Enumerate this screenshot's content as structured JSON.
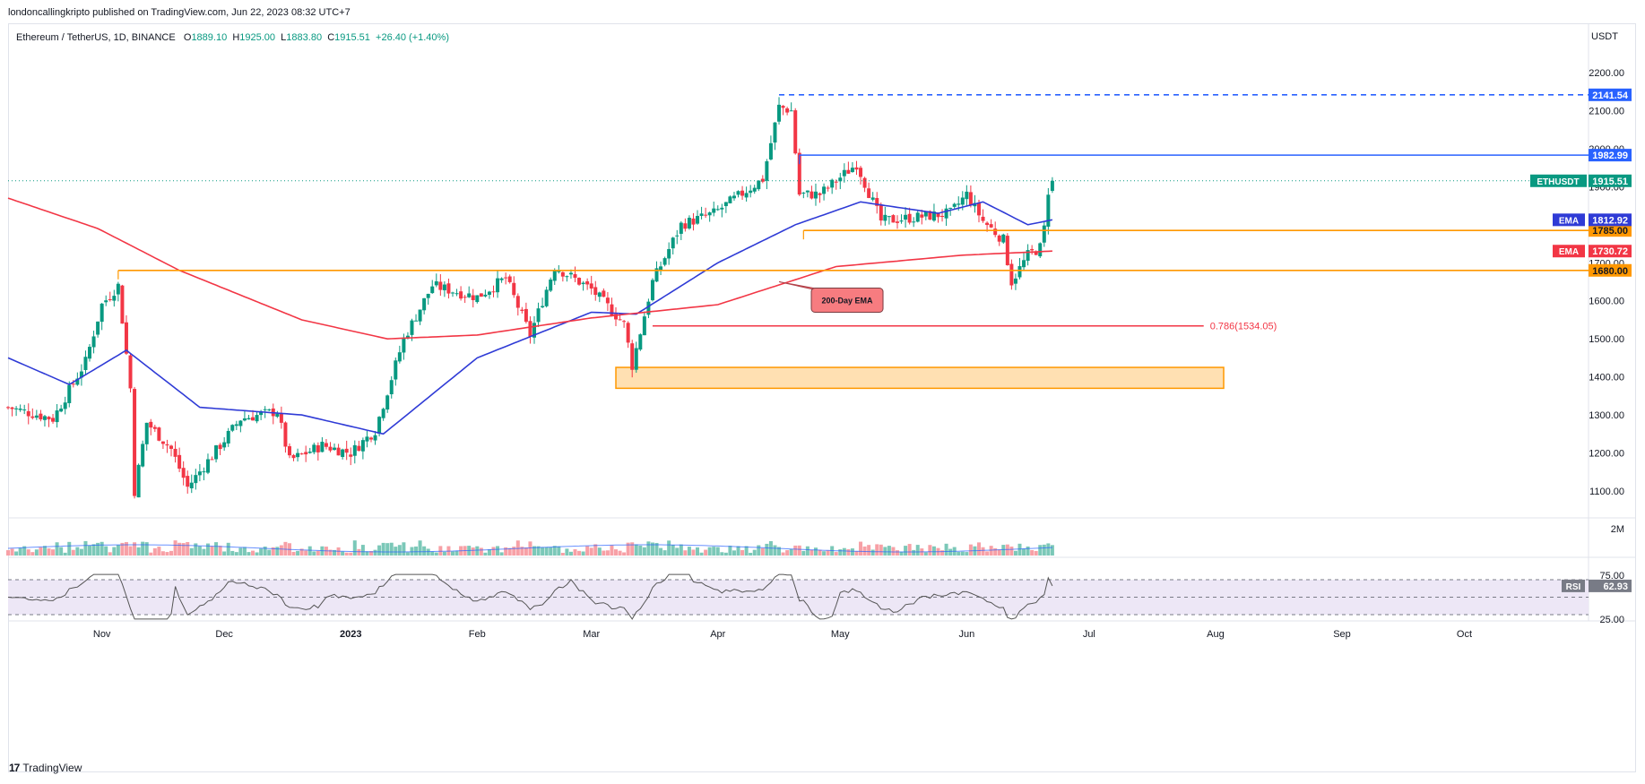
{
  "header": {
    "publisher": "londoncallingkripto published on TradingView.com, Jun 22, 2023 08:32 UTC+7",
    "symbol": "Ethereum / TetherUS, 1D, BINANCE",
    "open_label": "O",
    "open": "1889.10",
    "high_label": "H",
    "high": "1925.00",
    "low_label": "L",
    "low": "1883.80",
    "close_label": "C",
    "close": "1915.51",
    "change": "+26.40 (+1.40%)",
    "currency": "USDT"
  },
  "footer": {
    "brand": "TradingView"
  },
  "colors": {
    "up": "#089981",
    "down": "#f23645",
    "ema50": "#2f3bd6",
    "ema200": "#f23645",
    "orange": "#ff9800",
    "blue_level": "#2962ff",
    "rsi": "#7e57c2"
  },
  "chart_data": {
    "type": "candlestick",
    "symbol": "ETHUSDT",
    "timeframe": "1D",
    "x_range": [
      "2022-10-09",
      "2023-10-31"
    ],
    "ylim": [
      1030,
      2260
    ],
    "y_ticks": [
      "1100.00",
      "1200.00",
      "1300.00",
      "1400.00",
      "1500.00",
      "1600.00",
      "1700.00",
      "1800.00",
      "1900.00",
      "2000.00",
      "2100.00",
      "2200.00"
    ],
    "x_ticks": [
      "Nov",
      "Dec",
      "2023",
      "Feb",
      "Mar",
      "Apr",
      "May",
      "Jun",
      "Jul",
      "Aug",
      "Sep",
      "Oct"
    ],
    "price_path": [
      [
        "2022-10-09",
        1320
      ],
      [
        "2022-10-20",
        1290
      ],
      [
        "2022-10-28",
        1440
      ],
      [
        "2022-11-01",
        1590
      ],
      [
        "2022-11-05",
        1640
      ],
      [
        "2022-11-08",
        1370
      ],
      [
        "2022-11-09",
        1100
      ],
      [
        "2022-11-12",
        1280
      ],
      [
        "2022-11-18",
        1210
      ],
      [
        "2022-11-22",
        1110
      ],
      [
        "2022-11-30",
        1220
      ],
      [
        "2022-12-05",
        1290
      ],
      [
        "2022-12-14",
        1310
      ],
      [
        "2022-12-17",
        1180
      ],
      [
        "2022-12-25",
        1220
      ],
      [
        "2023-01-01",
        1200
      ],
      [
        "2023-01-07",
        1260
      ],
      [
        "2023-01-14",
        1500
      ],
      [
        "2023-01-21",
        1640
      ],
      [
        "2023-02-01",
        1610
      ],
      [
        "2023-02-08",
        1660
      ],
      [
        "2023-02-14",
        1510
      ],
      [
        "2023-02-20",
        1690
      ],
      [
        "2023-03-01",
        1630
      ],
      [
        "2023-03-09",
        1540
      ],
      [
        "2023-03-11",
        1430
      ],
      [
        "2023-03-16",
        1650
      ],
      [
        "2023-03-23",
        1800
      ],
      [
        "2023-03-31",
        1830
      ],
      [
        "2023-04-12",
        1920
      ],
      [
        "2023-04-16",
        2110
      ],
      [
        "2023-04-19",
        2100
      ],
      [
        "2023-04-21",
        1880
      ],
      [
        "2023-04-26",
        1880
      ],
      [
        "2023-05-05",
        1960
      ],
      [
        "2023-05-11",
        1810
      ],
      [
        "2023-05-20",
        1820
      ],
      [
        "2023-05-28",
        1830
      ],
      [
        "2023-06-01",
        1880
      ],
      [
        "2023-06-05",
        1810
      ],
      [
        "2023-06-10",
        1760
      ],
      [
        "2023-06-12",
        1650
      ],
      [
        "2023-06-16",
        1720
      ],
      [
        "2023-06-19",
        1740
      ],
      [
        "2023-06-20",
        1790
      ],
      [
        "2023-06-21",
        1890
      ],
      [
        "2023-06-22",
        1915.51
      ]
    ],
    "series": [
      {
        "name": "EMA",
        "value": "1812.92",
        "path": [
          [
            "2022-10-09",
            1450
          ],
          [
            "2022-10-24",
            1380
          ],
          [
            "2022-11-07",
            1470
          ],
          [
            "2022-11-25",
            1320
          ],
          [
            "2022-12-20",
            1300
          ],
          [
            "2023-01-09",
            1250
          ],
          [
            "2023-02-01",
            1450
          ],
          [
            "2023-03-01",
            1570
          ],
          [
            "2023-03-12",
            1565
          ],
          [
            "2023-04-01",
            1700
          ],
          [
            "2023-04-20",
            1800
          ],
          [
            "2023-05-06",
            1860
          ],
          [
            "2023-05-25",
            1830
          ],
          [
            "2023-06-05",
            1860
          ],
          [
            "2023-06-16",
            1800
          ],
          [
            "2023-06-22",
            1812.92
          ]
        ]
      },
      {
        "name": "EMA",
        "value": "1730.72",
        "path": [
          [
            "2022-10-09",
            1870
          ],
          [
            "2022-10-31",
            1790
          ],
          [
            "2022-11-20",
            1680
          ],
          [
            "2022-12-20",
            1550
          ],
          [
            "2023-01-10",
            1500
          ],
          [
            "2023-02-01",
            1510
          ],
          [
            "2023-03-01",
            1555
          ],
          [
            "2023-04-01",
            1590
          ],
          [
            "2023-04-30",
            1690
          ],
          [
            "2023-05-31",
            1720
          ],
          [
            "2023-06-22",
            1730.72
          ]
        ]
      }
    ],
    "levels": [
      {
        "label": "2141.54",
        "value": 2141.54,
        "style": "dashed",
        "color": "#2962ff",
        "from": "2023-04-16"
      },
      {
        "label": "1982.99",
        "value": 1982.99,
        "style": "solid",
        "color": "#2962ff",
        "from": "2023-04-21"
      },
      {
        "label": "1785.00",
        "value": 1785.0,
        "style": "solid",
        "color": "#ff9800",
        "from": "2023-04-22"
      },
      {
        "label": "1680.00",
        "value": 1680.0,
        "style": "solid",
        "color": "#ff9800",
        "from": "2022-11-05"
      }
    ],
    "price_label": {
      "name": "ETHUSDT",
      "value": "1915.51"
    },
    "fib": {
      "label": "0.786(1534.05)",
      "value": 1534.05,
      "from": "2023-03-16",
      "to": "2023-07-28"
    },
    "zone": {
      "from": "2023-03-07",
      "to": "2023-08-03",
      "low": 1370,
      "high": 1425
    },
    "annotation": {
      "text": "200-Day EMA",
      "date": "2023-04-16",
      "value": 1650
    },
    "volume": {
      "scale_label": "2M"
    },
    "rsi": {
      "name": "RSI",
      "value": "62.93",
      "ticks": [
        "75.00",
        "25.00"
      ],
      "overbought": 70,
      "oversold": 30,
      "mid": 50
    }
  }
}
